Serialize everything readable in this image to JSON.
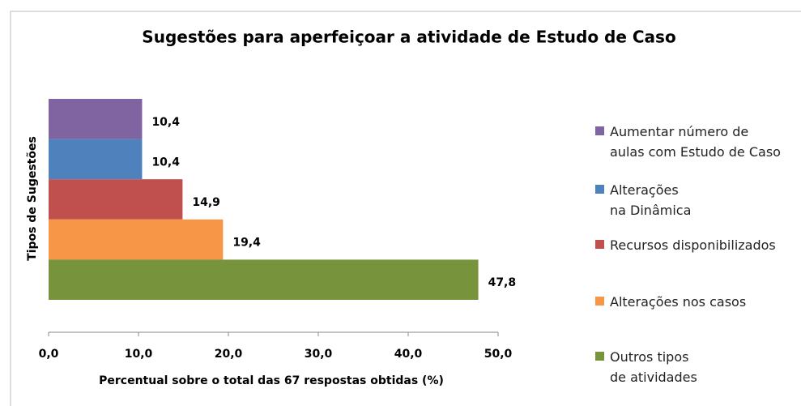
{
  "chart_data": {
    "type": "hbar",
    "title": "Sugestões para aperfeiçoar a atividade de Estudo de Caso",
    "xlabel": "Percentual sobre o total das 67 respostas obtidas (%)",
    "ylabel": "Tipos de Sugestões",
    "categories": [
      "Aumentar número de\naulas com Estudo de Caso",
      "Alterações\nna Dinâmica",
      "Recursos disponibilizados",
      "Alterações nos casos",
      "Outros tipos\nde atividades"
    ],
    "values": [
      10.4,
      10.4,
      14.9,
      19.4,
      47.8
    ],
    "value_labels": [
      "10,4",
      "10,4",
      "14,9",
      "19,4",
      "47,8"
    ],
    "colors": [
      "#8064a2",
      "#4f81bd",
      "#c0504d",
      "#f79646",
      "#77933c"
    ],
    "xlim": [
      0,
      50
    ],
    "xticks": [
      {
        "value": 0,
        "label": "0,0"
      },
      {
        "value": 10,
        "label": "10,0"
      },
      {
        "value": 20,
        "label": "20,0"
      },
      {
        "value": 30,
        "label": "30,0"
      },
      {
        "value": 40,
        "label": "40,0"
      },
      {
        "value": 50,
        "label": "50,0"
      }
    ],
    "legend": "right"
  }
}
